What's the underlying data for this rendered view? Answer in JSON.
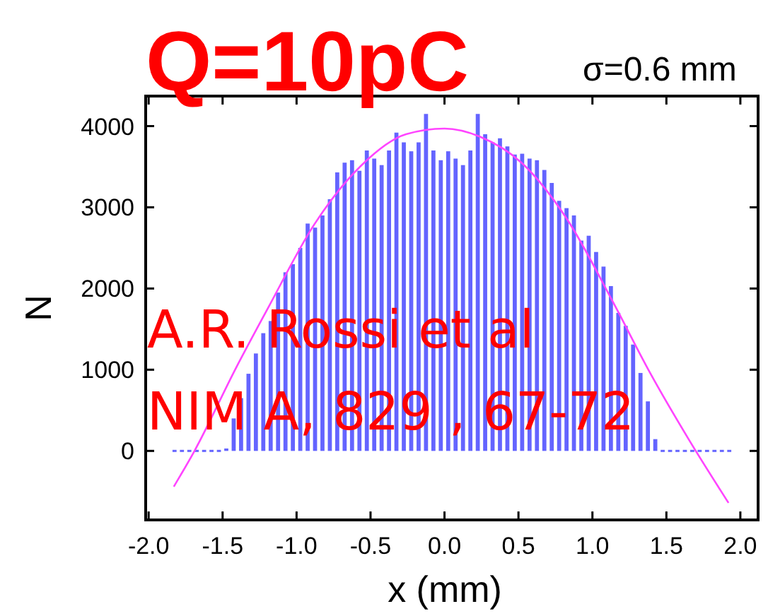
{
  "chart_data": {
    "type": "histogram",
    "title": "Q=10pC",
    "subtitle": "σ=0.6 mm",
    "xlabel": "x (mm)",
    "ylabel": "N",
    "annotations": [
      "A.R. Rossi et al",
      "NIM A, 829 , 67-72"
    ],
    "bins": [
      -1.85,
      -1.8,
      -1.75,
      -1.7,
      -1.65,
      -1.6,
      -1.55,
      -1.5,
      -1.45,
      -1.4,
      -1.35,
      -1.3,
      -1.25,
      -1.2,
      -1.15,
      -1.1,
      -1.05,
      -1.0,
      -0.95,
      -0.9,
      -0.85,
      -0.8,
      -0.75,
      -0.7,
      -0.65,
      -0.6,
      -0.55,
      -0.5,
      -0.45,
      -0.4,
      -0.35,
      -0.3,
      -0.25,
      -0.2,
      -0.15,
      -0.1,
      -0.05,
      0.0,
      0.05,
      0.1,
      0.15,
      0.2,
      0.25,
      0.3,
      0.35,
      0.4,
      0.45,
      0.5,
      0.55,
      0.6,
      0.65,
      0.7,
      0.75,
      0.8,
      0.85,
      0.9,
      0.95,
      1.0,
      1.05,
      1.1,
      1.15,
      1.2,
      1.25,
      1.3,
      1.35,
      1.4,
      1.45,
      1.5,
      1.55,
      1.6,
      1.65,
      1.7,
      1.75,
      1.8,
      1.85,
      1.9,
      1.95
    ],
    "values": [
      0,
      0,
      0,
      0,
      0,
      0,
      0,
      30,
      400,
      650,
      950,
      1200,
      1450,
      1600,
      1950,
      2200,
      2300,
      2500,
      2800,
      2750,
      2900,
      3100,
      3430,
      3550,
      3580,
      3450,
      3700,
      3600,
      3520,
      3700,
      3920,
      3800,
      3690,
      3800,
      4150,
      3700,
      3580,
      3690,
      3600,
      3520,
      3700,
      4150,
      3900,
      3800,
      3850,
      3750,
      3650,
      3660,
      3600,
      3580,
      3460,
      3300,
      3080,
      2990,
      2900,
      2590,
      2650,
      2450,
      2270,
      2030,
      1700,
      1540,
      1310,
      960,
      610,
      145,
      0,
      0,
      0,
      0,
      0,
      0,
      0,
      0,
      0,
      0
    ],
    "color": "#6464ff",
    "series": [
      {
        "type": "line",
        "color": "#ff44ff",
        "x": [
          -1.83,
          -1.69,
          -1.41,
          -1.19,
          -0.88,
          -0.56,
          -0.26,
          0.0,
          0.24,
          0.52,
          0.83,
          1.14,
          1.39,
          1.65,
          1.92
        ],
        "values": [
          -440,
          0,
          1020,
          1770,
          2790,
          3520,
          3900,
          3970,
          3870,
          3550,
          2850,
          1830,
          960,
          145,
          -640
        ]
      }
    ],
    "xlim": [
      -2.02,
      2.12
    ],
    "xticks": [
      {
        "value": -2,
        "label": "-2.0"
      },
      {
        "value": -1.5,
        "label": "-1.5"
      },
      {
        "value": -1,
        "label": "-1.0"
      },
      {
        "value": -0.5,
        "label": "-0.5"
      },
      {
        "value": 0,
        "label": "0.0"
      },
      {
        "value": 0.5,
        "label": "0.5"
      },
      {
        "value": 1,
        "label": "1.0"
      },
      {
        "value": 1.5,
        "label": "1.5"
      },
      {
        "value": 2,
        "label": "2.0"
      }
    ],
    "ylim": [
      -850,
      4370
    ],
    "yticks": [
      0,
      1000,
      2000,
      3000,
      4000
    ]
  }
}
